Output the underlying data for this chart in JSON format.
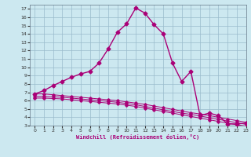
{
  "xlabel": "Windchill (Refroidissement éolien,°C)",
  "bg_color": "#cce8f0",
  "line_color": "#aa0077",
  "grid_color": "#99bbcc",
  "xlim": [
    -0.5,
    23
  ],
  "ylim": [
    3,
    17.5
  ],
  "xticks": [
    0,
    1,
    2,
    3,
    4,
    5,
    6,
    7,
    8,
    9,
    10,
    11,
    12,
    13,
    14,
    15,
    16,
    17,
    18,
    19,
    20,
    21,
    22,
    23
  ],
  "yticks": [
    3,
    4,
    5,
    6,
    7,
    8,
    9,
    10,
    11,
    12,
    13,
    14,
    15,
    16,
    17
  ],
  "main_x": [
    0,
    1,
    2,
    3,
    4,
    5,
    6,
    7,
    8,
    9,
    10,
    11,
    12,
    13,
    14,
    15,
    16,
    17,
    18,
    19,
    20,
    21,
    22,
    23
  ],
  "main_y": [
    6.8,
    7.2,
    7.8,
    8.3,
    8.8,
    9.2,
    9.5,
    10.5,
    12.2,
    14.2,
    15.2,
    17.1,
    16.5,
    15.1,
    14.0,
    10.5,
    8.3,
    9.5,
    4.2,
    4.5,
    4.2,
    3.2,
    3.2,
    3.3
  ],
  "flat1_x": [
    0,
    1,
    2,
    3,
    4,
    5,
    6,
    7,
    8,
    9,
    10,
    11,
    12,
    13,
    14,
    15,
    16,
    17,
    18,
    19,
    20,
    21,
    22,
    23
  ],
  "flat1_y": [
    6.8,
    6.8,
    6.7,
    6.6,
    6.5,
    6.4,
    6.3,
    6.2,
    6.1,
    6.0,
    5.85,
    5.7,
    5.55,
    5.35,
    5.15,
    4.95,
    4.75,
    4.55,
    4.4,
    4.2,
    4.0,
    3.8,
    3.6,
    3.4
  ],
  "flat2_x": [
    0,
    1,
    2,
    3,
    4,
    5,
    6,
    7,
    8,
    9,
    10,
    11,
    12,
    13,
    14,
    15,
    16,
    17,
    18,
    19,
    20,
    21,
    22,
    23
  ],
  "flat2_y": [
    6.5,
    6.5,
    6.45,
    6.4,
    6.3,
    6.2,
    6.1,
    6.0,
    5.9,
    5.8,
    5.65,
    5.5,
    5.3,
    5.1,
    4.9,
    4.7,
    4.5,
    4.35,
    4.15,
    3.95,
    3.75,
    3.55,
    3.35,
    3.15
  ],
  "flat3_x": [
    0,
    1,
    2,
    3,
    4,
    5,
    6,
    7,
    8,
    9,
    10,
    11,
    12,
    13,
    14,
    15,
    16,
    17,
    18,
    19,
    20,
    21,
    22,
    23
  ],
  "flat3_y": [
    6.3,
    6.3,
    6.25,
    6.2,
    6.1,
    6.0,
    5.9,
    5.8,
    5.7,
    5.6,
    5.45,
    5.3,
    5.1,
    4.9,
    4.7,
    4.5,
    4.3,
    4.1,
    3.9,
    3.7,
    3.5,
    3.3,
    3.1,
    2.95
  ]
}
